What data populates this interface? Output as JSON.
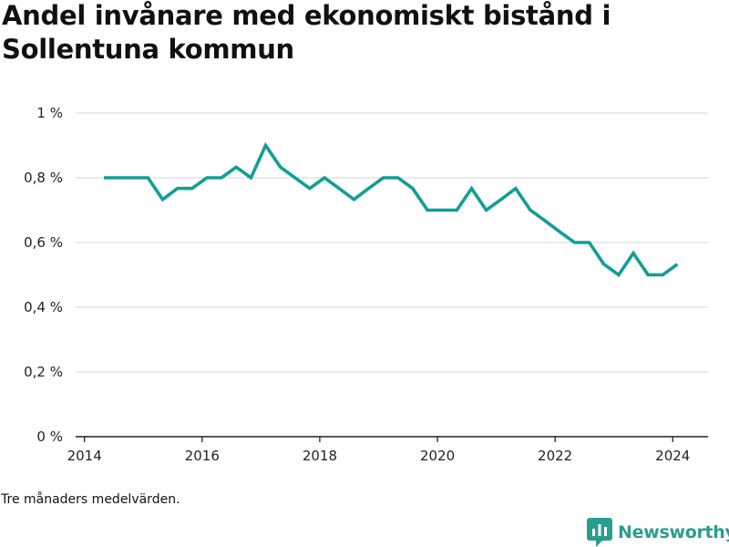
{
  "header": {
    "title": "Andel invånare med ekonomiskt bistånd i Sollentuna kommun"
  },
  "footer": {
    "note": "Tre månaders medelvärden.",
    "brand": "Newsworthy"
  },
  "colors": {
    "line": "#129e96",
    "brand": "#2a9d8f",
    "grid": "#dddddd",
    "axis": "#222222"
  },
  "chart_data": {
    "type": "line",
    "title": "Andel invånare med ekonomiskt bistånd i Sollentuna kommun",
    "xlabel": "",
    "ylabel": "",
    "xlim": [
      2013.85,
      2024.6
    ],
    "ylim": [
      0,
      1
    ],
    "xticks": [
      2014,
      2016,
      2018,
      2020,
      2022,
      2024
    ],
    "xtick_labels": [
      "2014",
      "2016",
      "2018",
      "2020",
      "2022",
      "2024"
    ],
    "yticks": [
      0,
      0.2,
      0.4,
      0.6,
      0.8,
      1
    ],
    "ytick_labels": [
      "0 %",
      "0,2 %",
      "0,4 %",
      "0,6 %",
      "0,8 %",
      "1 %"
    ],
    "grid": true,
    "legend": "none",
    "series": [
      {
        "x": [
          2014.33,
          2014.58,
          2014.83,
          2015.08,
          2015.33,
          2015.58,
          2015.83,
          2016.08,
          2016.33,
          2016.58,
          2016.83,
          2017.08,
          2017.33,
          2017.58,
          2017.83,
          2018.08,
          2018.33,
          2018.58,
          2018.83,
          2019.08,
          2019.33,
          2019.58,
          2019.83,
          2020.08,
          2020.33,
          2020.58,
          2020.83,
          2021.08,
          2021.33,
          2021.58,
          2021.83,
          2022.08,
          2022.33,
          2022.58,
          2022.83,
          2023.08,
          2023.33,
          2023.58,
          2023.83,
          2024.08
        ],
        "values": [
          0.8,
          0.8,
          0.8,
          0.8,
          0.733,
          0.767,
          0.767,
          0.8,
          0.8,
          0.833,
          0.8,
          0.9,
          0.833,
          0.8,
          0.767,
          0.8,
          0.767,
          0.733,
          0.767,
          0.8,
          0.8,
          0.767,
          0.7,
          0.7,
          0.7,
          0.767,
          0.7,
          0.733,
          0.767,
          0.7,
          0.667,
          0.633,
          0.6,
          0.6,
          0.533,
          0.5,
          0.567,
          0.5,
          0.5,
          0.533
        ]
      }
    ]
  }
}
